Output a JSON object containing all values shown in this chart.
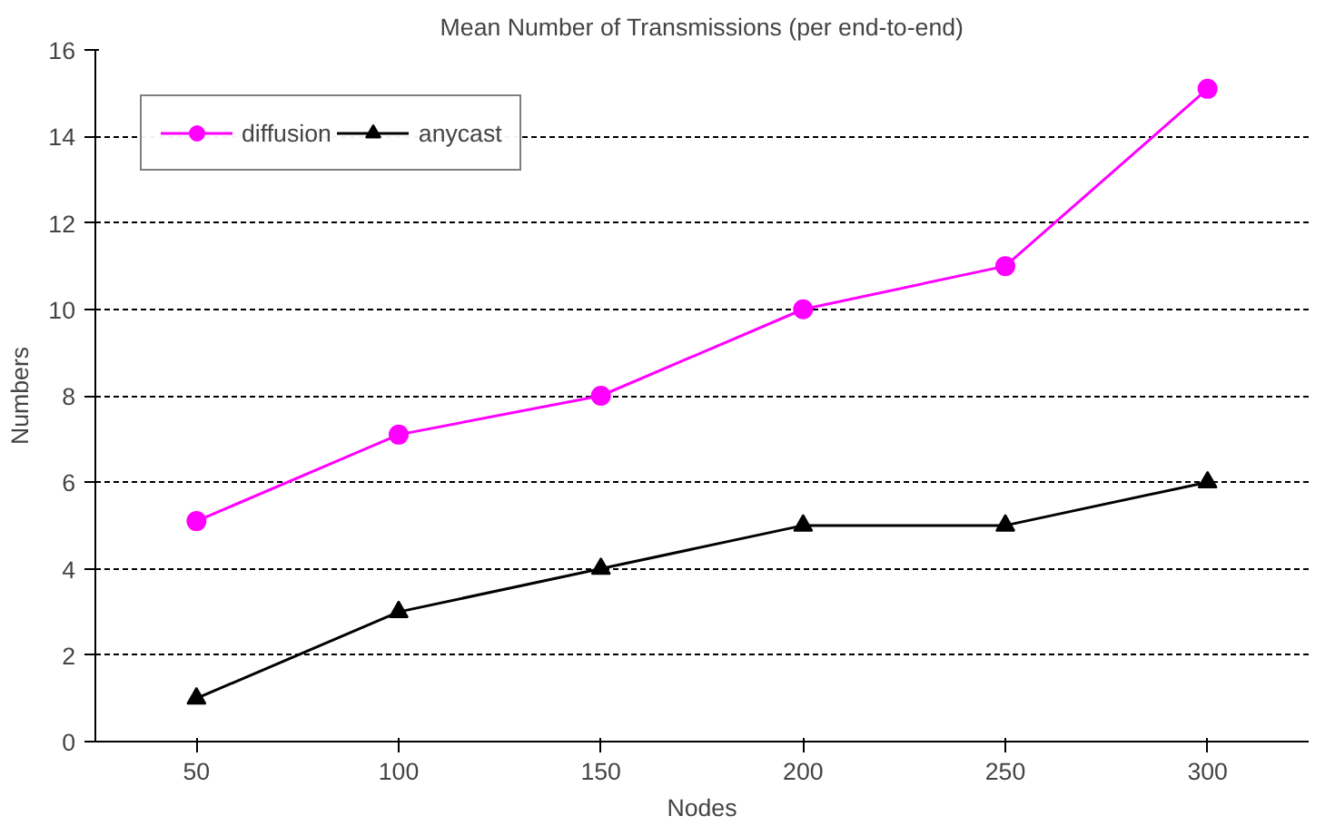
{
  "chart_data": {
    "type": "line",
    "title": "Mean Number of Transmissions (per end-to-end)",
    "xlabel": "Nodes",
    "ylabel": "Numbers",
    "categories": [
      "50",
      "100",
      "150",
      "200",
      "250",
      "300"
    ],
    "ylim": [
      0,
      16
    ],
    "yticks": [
      0,
      2,
      4,
      6,
      8,
      10,
      12,
      14,
      16
    ],
    "grid": "y",
    "legend": "top left",
    "line_style": "solid",
    "series": [
      {
        "name": "diffusion",
        "color": "#ff00ff",
        "marker": "circle",
        "values": [
          5.1,
          7.1,
          8,
          10,
          11,
          15.1
        ]
      },
      {
        "name": "anycast",
        "color": "#000000",
        "marker": "triangle",
        "values": [
          1,
          3,
          4,
          5,
          5,
          6
        ]
      }
    ]
  }
}
